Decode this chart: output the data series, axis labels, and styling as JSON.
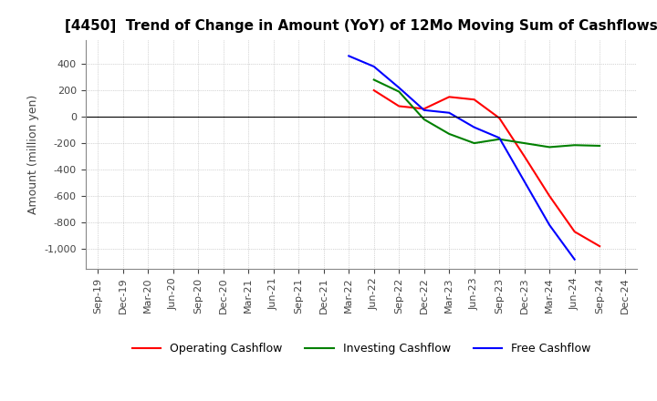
{
  "title": "[4450]  Trend of Change in Amount (YoY) of 12Mo Moving Sum of Cashflows",
  "ylabel": "Amount (million yen)",
  "line_colors": {
    "operating": "#ff0000",
    "investing": "#008000",
    "free": "#0000ff"
  },
  "legend_labels": [
    "Operating Cashflow",
    "Investing Cashflow",
    "Free Cashflow"
  ],
  "x_labels": [
    "Sep-19",
    "Dec-19",
    "Mar-20",
    "Jun-20",
    "Sep-20",
    "Dec-20",
    "Mar-21",
    "Jun-21",
    "Sep-21",
    "Dec-21",
    "Mar-22",
    "Jun-22",
    "Sep-22",
    "Dec-22",
    "Mar-23",
    "Jun-23",
    "Sep-23",
    "Dec-23",
    "Mar-24",
    "Jun-24",
    "Sep-24",
    "Dec-24"
  ],
  "operating": [
    null,
    null,
    null,
    null,
    null,
    null,
    null,
    null,
    null,
    null,
    null,
    200,
    80,
    60,
    150,
    130,
    -10,
    -300,
    -600,
    -870,
    -980,
    null
  ],
  "investing": [
    null,
    null,
    null,
    null,
    null,
    null,
    null,
    null,
    null,
    null,
    null,
    280,
    190,
    -20,
    -130,
    -200,
    -170,
    -200,
    -230,
    -215,
    -220,
    null
  ],
  "free": [
    null,
    null,
    null,
    null,
    null,
    null,
    null,
    null,
    null,
    null,
    460,
    380,
    220,
    50,
    30,
    -80,
    -160,
    -490,
    -820,
    -1080,
    null,
    null
  ],
  "ylim": [
    -1150,
    580
  ],
  "yticks": [
    400,
    200,
    0,
    -200,
    -400,
    -600,
    -800,
    -1000
  ],
  "background": "#ffffff",
  "grid_color": "#b0b0b0"
}
